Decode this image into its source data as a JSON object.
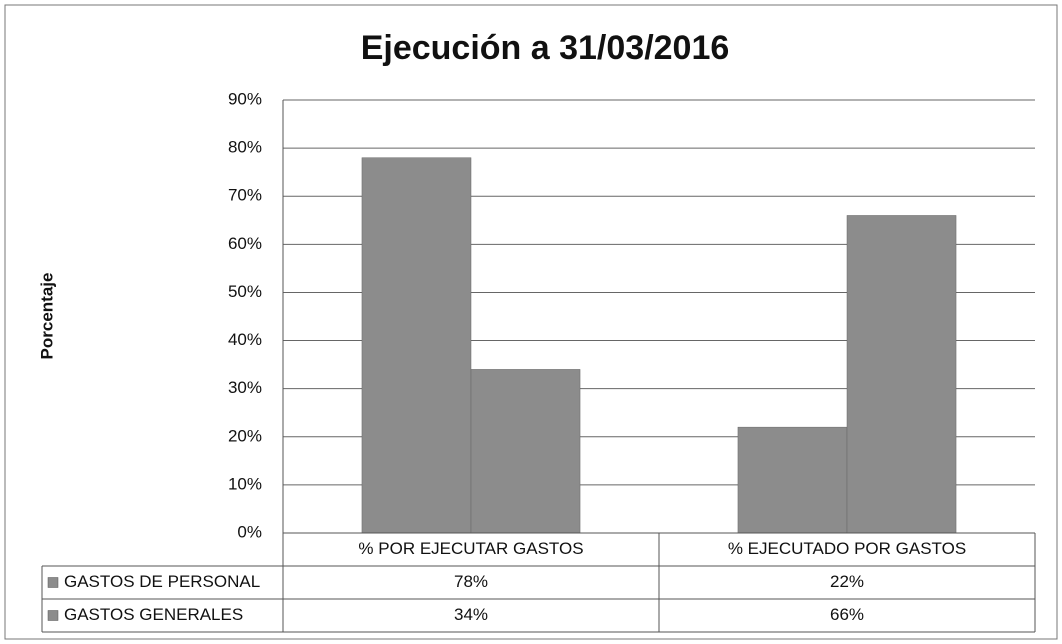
{
  "chart_data": {
    "type": "bar",
    "title": "Ejecución a 31/03/2016",
    "y_label": "Porcentaje",
    "categories": [
      "% POR EJECUTAR GASTOS",
      "% EJECUTADO POR GASTOS"
    ],
    "series": [
      {
        "name": "GASTOS DE PERSONAL",
        "color": "#8c8c8c",
        "values": [
          78,
          22
        ],
        "value_labels": [
          "78%",
          "22%"
        ]
      },
      {
        "name": "GASTOS GENERALES",
        "color": "#8c8c8c",
        "values": [
          34,
          66
        ],
        "value_labels": [
          "34%",
          "66%"
        ]
      }
    ],
    "ylim": [
      0,
      90
    ],
    "yticks": [
      {
        "value": 0,
        "label": "0%"
      },
      {
        "value": 10,
        "label": "10%"
      },
      {
        "value": 20,
        "label": "20%"
      },
      {
        "value": 30,
        "label": "30%"
      },
      {
        "value": 40,
        "label": "40%"
      },
      {
        "value": 50,
        "label": "50%"
      },
      {
        "value": 60,
        "label": "60%"
      },
      {
        "value": 70,
        "label": "70%"
      },
      {
        "value": 80,
        "label": "80%"
      },
      {
        "value": 90,
        "label": "90%"
      }
    ],
    "grid": true
  }
}
